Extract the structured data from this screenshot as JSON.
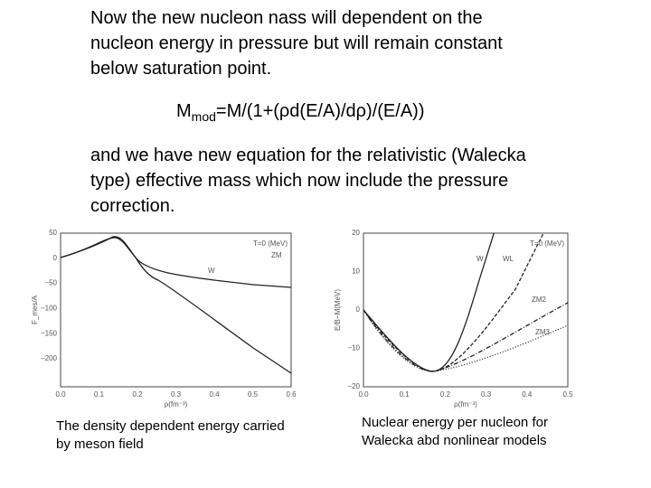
{
  "paragraphs": [
    "Now the new nucleon nass will dependent on the nucleon energy in pressure but will remain constant below saturation point.",
    "and we have new equation for the relativistic (Walecka type) effective mass which now include the pressure correction."
  ],
  "formula": {
    "symbol": "M",
    "subscript": "mod",
    "body": "=M/(1+(ρd(E/A)/dρ)/(E/A))"
  },
  "figures": [
    {
      "caption": "The density dependent energy carried by meson field",
      "y_label": "F_mes/A",
      "x_label": "ρ(fm⁻³)",
      "legend": "T=0 (MeV)",
      "y_ticks": [
        "50",
        "0",
        "−50",
        "−100",
        "−150",
        "−200"
      ],
      "x_ticks": [
        "0.0",
        "0.1",
        "0.2",
        "0.3",
        "0.4",
        "0.5",
        "0.6"
      ],
      "curve_labels": [
        "ZM",
        "W"
      ]
    },
    {
      "caption": "Nuclear energy per nucleon for Walecka abd nonlinear models",
      "y_label": "E/B−M(MeV)",
      "x_label": "ρ(fm⁻³)",
      "legend": "T=0 (MeV)",
      "y_ticks": [
        "20",
        "10",
        "0",
        "−10",
        "−20"
      ],
      "x_ticks": [
        "0.0",
        "0.1",
        "0.2",
        "0.3",
        "0.4",
        "0.5"
      ],
      "curve_labels": [
        "W",
        "WL",
        "ZM2",
        "ZM3"
      ]
    }
  ]
}
